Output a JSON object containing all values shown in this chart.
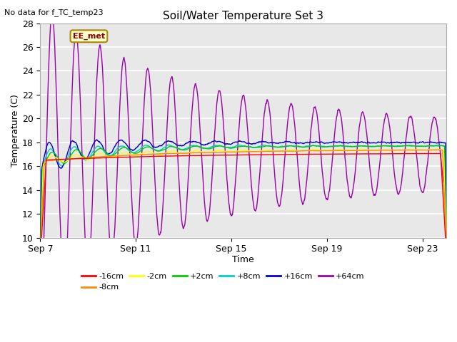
{
  "title": "Soil/Water Temperature Set 3",
  "subtitle": "No data for f_TC_temp23",
  "xlabel": "Time",
  "ylabel": "Temperature (C)",
  "ylim": [
    10,
    28
  ],
  "yticks": [
    10,
    12,
    14,
    16,
    18,
    20,
    22,
    24,
    26,
    28
  ],
  "xlim_days": [
    0,
    17
  ],
  "xtick_labels": [
    "Sep 7",
    "Sep 11",
    "Sep 15",
    "Sep 19",
    "Sep 23"
  ],
  "xtick_positions": [
    0,
    4,
    8,
    12,
    16
  ],
  "legend_labels": [
    "-16cm",
    "-8cm",
    "-2cm",
    "+2cm",
    "+8cm",
    "+16cm",
    "+64cm"
  ],
  "legend_colors": [
    "#ff0000",
    "#ff8c00",
    "#ffff00",
    "#00cc00",
    "#00cccc",
    "#0000cc",
    "#9900aa"
  ],
  "ee_met_box_color": "#ffffcc",
  "ee_met_border_color": "#aa8800",
  "ee_met_text_color": "#880000",
  "plot_bg_color": "#e8e8e8",
  "grid_color": "#ffffff",
  "fig_bg_color": "#ffffff"
}
